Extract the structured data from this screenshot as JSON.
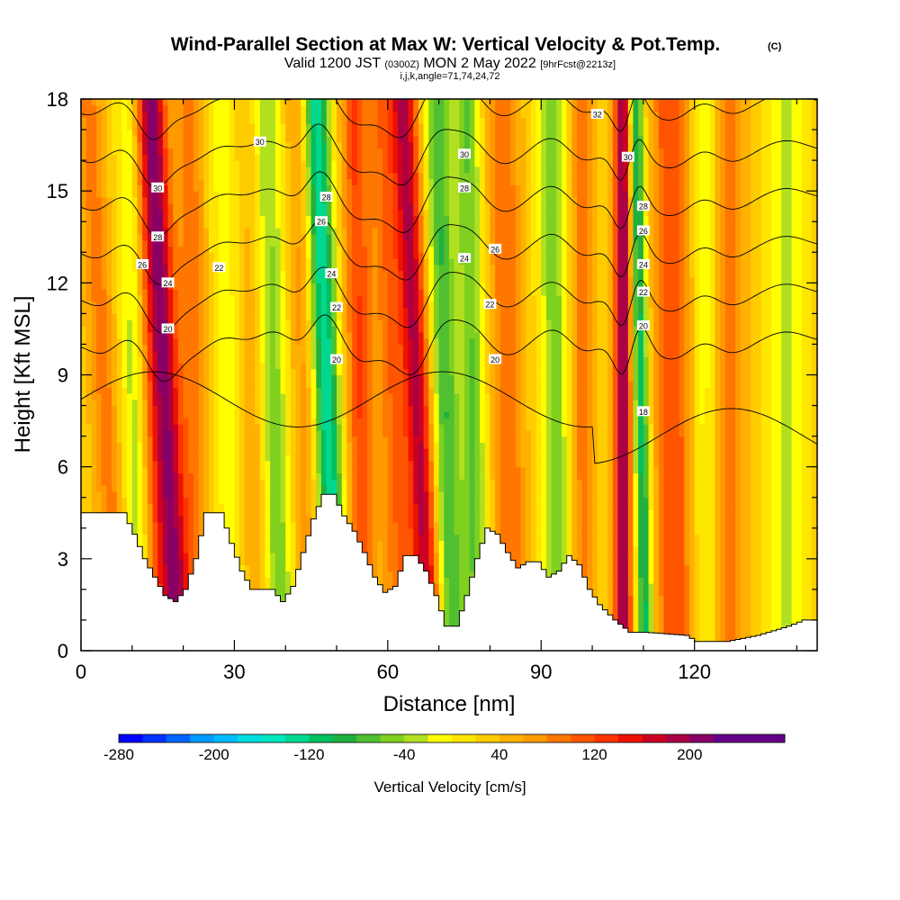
{
  "header": {
    "title": "Wind-Parallel Section at Max W: Vertical Velocity & Pot.Temp.",
    "copyright": "(C)",
    "valid_prefix": "Valid 1200 JST",
    "valid_utc": "(0300Z)",
    "valid_date": "MON 2 May 2022",
    "forecast": "[9hrFcst@2213z]",
    "indices": "i,j,k,angle=71,74,24,72"
  },
  "chart_data": {
    "type": "heatmap",
    "xlabel": "Distance [nm]",
    "ylabel": "Height [Kft MSL]",
    "xlim": [
      0,
      144
    ],
    "ylim": [
      0,
      18
    ],
    "x_ticks": [
      "0",
      "30",
      "60",
      "90",
      "120"
    ],
    "x_tick_values": [
      0,
      30,
      60,
      90,
      120
    ],
    "y_ticks": [
      "0",
      "3",
      "6",
      "9",
      "12",
      "15",
      "18"
    ],
    "y_tick_values": [
      0,
      3,
      6,
      9,
      12,
      15,
      18
    ],
    "colorbar": {
      "label": "Vertical Velocity [cm/s]",
      "min": -280,
      "max": 280,
      "step": 20,
      "tick_labels": [
        "-280",
        "-200",
        "-120",
        "-40",
        "40",
        "120",
        "200"
      ],
      "tick_values": [
        -280,
        -200,
        -120,
        -40,
        40,
        120,
        200
      ],
      "colors": [
        "#0000ff",
        "#0033ff",
        "#0066ff",
        "#0099ff",
        "#00bbff",
        "#00dddd",
        "#00e8c0",
        "#00d890",
        "#00c060",
        "#20b040",
        "#50c030",
        "#80d020",
        "#b0e020",
        "#ffff00",
        "#ffe600",
        "#ffcc00",
        "#ffb000",
        "#ff9900",
        "#ff7700",
        "#ff5500",
        "#ff3300",
        "#ee1100",
        "#cc0022",
        "#aa0044",
        "#880066",
        "#660088"
      ]
    },
    "terrain_kft": [
      [
        0,
        4.5
      ],
      [
        8,
        4.5
      ],
      [
        10,
        3.8
      ],
      [
        12,
        3.0
      ],
      [
        14,
        2.4
      ],
      [
        16,
        1.8
      ],
      [
        18,
        1.6
      ],
      [
        20,
        2.0
      ],
      [
        22,
        3.0
      ],
      [
        24,
        4.5
      ],
      [
        27,
        4.5
      ],
      [
        29,
        3.5
      ],
      [
        31,
        2.6
      ],
      [
        33,
        2.0
      ],
      [
        37,
        2.0
      ],
      [
        39,
        1.6
      ],
      [
        41,
        2.1
      ],
      [
        43,
        3.2
      ],
      [
        45,
        4.3
      ],
      [
        47,
        5.1
      ],
      [
        49,
        5.1
      ],
      [
        51,
        4.4
      ],
      [
        53,
        3.9
      ],
      [
        55,
        3.2
      ],
      [
        57,
        2.4
      ],
      [
        59,
        1.9
      ],
      [
        61,
        2.1
      ],
      [
        63,
        3.1
      ],
      [
        65,
        3.1
      ],
      [
        67,
        2.6
      ],
      [
        69,
        1.8
      ],
      [
        71,
        0.8
      ],
      [
        73,
        0.8
      ],
      [
        75,
        1.8
      ],
      [
        77,
        3.0
      ],
      [
        79,
        4.0
      ],
      [
        81,
        3.8
      ],
      [
        83,
        3.2
      ],
      [
        85,
        2.7
      ],
      [
        87,
        2.9
      ],
      [
        89,
        2.9
      ],
      [
        91,
        2.4
      ],
      [
        93,
        2.6
      ],
      [
        95,
        3.1
      ],
      [
        97,
        2.8
      ],
      [
        99,
        2.0
      ],
      [
        101,
        1.5
      ],
      [
        104,
        1.0
      ],
      [
        107,
        0.6
      ],
      [
        110,
        0.6
      ],
      [
        118,
        0.5
      ],
      [
        120,
        0.3
      ],
      [
        126,
        0.3
      ],
      [
        132,
        0.5
      ],
      [
        138,
        0.8
      ],
      [
        141,
        1.0
      ],
      [
        144,
        1.0
      ]
    ],
    "w_background_cms": 30,
    "w_bands": [
      {
        "x": 6,
        "tilt": -0.33,
        "w": 2.5,
        "amp": 60
      },
      {
        "x": 11,
        "tilt": -0.11,
        "w": 2.5,
        "amp": -70
      },
      {
        "x": 15,
        "tilt": -0.22,
        "w": 3.0,
        "amp": 80
      },
      {
        "x": 18,
        "tilt": -0.28,
        "w": 2.5,
        "amp": 140
      },
      {
        "x": 22,
        "tilt": -0.06,
        "w": 3.0,
        "amp": 60
      },
      {
        "x": 29,
        "tilt": -0.11,
        "w": 3.0,
        "amp": -40
      },
      {
        "x": 35,
        "tilt": -0.06,
        "w": 3.0,
        "amp": 50
      },
      {
        "x": 38,
        "tilt": -0.17,
        "w": 3.0,
        "amp": -100
      },
      {
        "x": 44,
        "tilt": -0.11,
        "w": 2.5,
        "amp": 40
      },
      {
        "x": 49,
        "tilt": -0.22,
        "w": 2.5,
        "amp": -170
      },
      {
        "x": 55,
        "tilt": -0.11,
        "w": 2.5,
        "amp": 90
      },
      {
        "x": 62,
        "tilt": -0.22,
        "w": 3.0,
        "amp": 70
      },
      {
        "x": 67,
        "tilt": -0.28,
        "w": 2.5,
        "amp": 150
      },
      {
        "x": 72,
        "tilt": -0.17,
        "w": 2.5,
        "amp": -110
      },
      {
        "x": 77,
        "tilt": -0.11,
        "w": 2.5,
        "amp": -90
      },
      {
        "x": 84,
        "tilt": -0.11,
        "w": 3.0,
        "amp": 70
      },
      {
        "x": 93,
        "tilt": -0.06,
        "w": 3.0,
        "amp": -80
      },
      {
        "x": 98,
        "tilt": 0.0,
        "w": 2.5,
        "amp": 60
      },
      {
        "x": 106,
        "tilt": 0.0,
        "w": 1.6,
        "amp": 180
      },
      {
        "x": 110,
        "tilt": -0.11,
        "w": 1.5,
        "amp": -140
      },
      {
        "x": 116,
        "tilt": -0.06,
        "w": 3.5,
        "amp": 90
      },
      {
        "x": 122,
        "tilt": 0.0,
        "w": 2.5,
        "amp": -40
      },
      {
        "x": 127,
        "tilt": 0.0,
        "w": 3.0,
        "amp": 60
      },
      {
        "x": 138,
        "tilt": 0.0,
        "w": 3.5,
        "amp": -60
      }
    ],
    "theta_contours_c": [
      18,
      20,
      22,
      24,
      26,
      28,
      30,
      32
    ],
    "theta_labels": [
      {
        "text": "30",
        "x": 15,
        "y": 15.1
      },
      {
        "text": "28",
        "x": 15,
        "y": 13.5
      },
      {
        "text": "26",
        "x": 12,
        "y": 12.6
      },
      {
        "text": "24",
        "x": 17,
        "y": 12.0
      },
      {
        "text": "20",
        "x": 17,
        "y": 10.5
      },
      {
        "text": "30",
        "x": 35,
        "y": 16.6
      },
      {
        "text": "22",
        "x": 27,
        "y": 12.5
      },
      {
        "text": "28",
        "x": 48,
        "y": 14.8
      },
      {
        "text": "26",
        "x": 47,
        "y": 14.0
      },
      {
        "text": "24",
        "x": 49,
        "y": 12.3
      },
      {
        "text": "22",
        "x": 50,
        "y": 11.2
      },
      {
        "text": "20",
        "x": 50,
        "y": 9.5
      },
      {
        "text": "30",
        "x": 75,
        "y": 16.2
      },
      {
        "text": "28",
        "x": 75,
        "y": 15.1
      },
      {
        "text": "24",
        "x": 75,
        "y": 12.8
      },
      {
        "text": "26",
        "x": 81,
        "y": 13.1
      },
      {
        "text": "22",
        "x": 80,
        "y": 11.3
      },
      {
        "text": "20",
        "x": 81,
        "y": 9.5
      },
      {
        "text": "32",
        "x": 101,
        "y": 17.5
      },
      {
        "text": "30",
        "x": 107,
        "y": 16.1
      },
      {
        "text": "28",
        "x": 110,
        "y": 14.5
      },
      {
        "text": "26",
        "x": 110,
        "y": 13.7
      },
      {
        "text": "24",
        "x": 110,
        "y": 12.6
      },
      {
        "text": "22",
        "x": 110,
        "y": 11.7
      },
      {
        "text": "20",
        "x": 110,
        "y": 10.6
      },
      {
        "text": "18",
        "x": 110,
        "y": 7.8
      }
    ]
  }
}
